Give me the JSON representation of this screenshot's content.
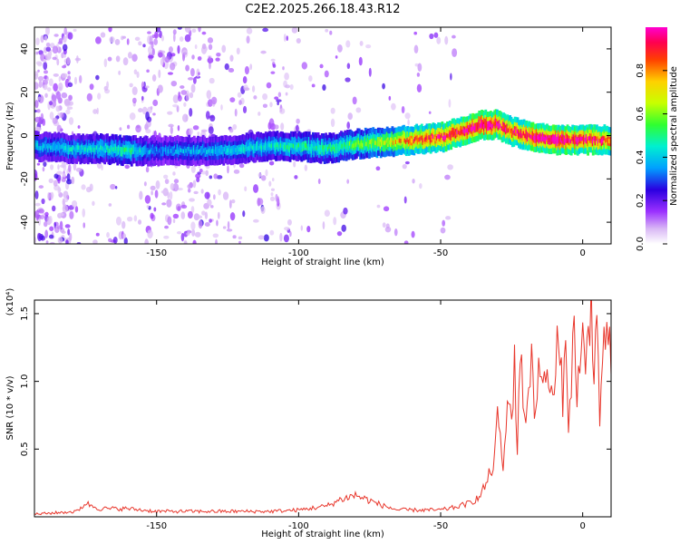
{
  "chart_data": [
    {
      "type": "heatmap",
      "name": "spectrogram",
      "title": "C2E2.2025.266.18.43.R12",
      "xlabel": "Height of straight line (km)",
      "ylabel": "Frequency (Hz)",
      "xlim": [
        -193,
        10
      ],
      "ylim": [
        -50,
        50
      ],
      "xticks": [
        -150,
        -100,
        -50,
        0
      ],
      "yticks": [
        -40,
        -20,
        0,
        20,
        40
      ],
      "xtick_labels": [
        "-150",
        "-100",
        "-50",
        "0"
      ],
      "ytick_labels": [
        "-40",
        "-20",
        "0",
        "20",
        "40"
      ],
      "colorbar": {
        "label": "Normalized spectral amplitude",
        "range": [
          0,
          1
        ],
        "ticks": [
          0.0,
          0.2,
          0.4,
          0.6,
          0.8
        ],
        "tick_labels": [
          "0.0",
          "0.2",
          "0.4",
          "0.6",
          "0.8"
        ]
      },
      "ridge": {
        "x": [
          -193,
          -180,
          -170,
          -160,
          -150,
          -140,
          -130,
          -120,
          -110,
          -100,
          -90,
          -80,
          -70,
          -60,
          -50,
          -45,
          -40,
          -35,
          -30,
          -25,
          -20,
          -15,
          -10,
          -5,
          0,
          5,
          10
        ],
        "freq": [
          -5,
          -6,
          -6,
          -7,
          -7,
          -7,
          -7,
          -6,
          -5,
          -5,
          -6,
          -4,
          -3,
          -2,
          -1,
          1,
          3,
          5,
          5,
          2,
          0,
          -1,
          -2,
          -2,
          -2,
          -2,
          -2
        ],
        "amp": [
          0.35,
          0.38,
          0.4,
          0.45,
          0.3,
          0.35,
          0.35,
          0.38,
          0.4,
          0.45,
          0.45,
          0.5,
          0.6,
          0.75,
          0.85,
          0.9,
          0.95,
          0.95,
          0.9,
          0.85,
          0.9,
          0.95,
          0.95,
          0.9,
          0.9,
          0.85,
          0.8
        ]
      }
    },
    {
      "type": "line",
      "name": "snr",
      "xlabel": "Height of straight line (km)",
      "ylabel": "SNR (10 * v/v)",
      "yscale_label": "(x10⁴)",
      "xlim": [
        -193,
        10
      ],
      "ylim": [
        0,
        1.6
      ],
      "xticks": [
        -150,
        -100,
        -50,
        0
      ],
      "yticks": [
        0.5,
        1.0,
        1.5
      ],
      "xtick_labels": [
        "-150",
        "-100",
        "-50",
        "0"
      ],
      "ytick_labels": [
        "0.5",
        "1.0",
        "1.5"
      ],
      "line_color": "#e8362b",
      "series": [
        {
          "name": "SNR",
          "x": [
            -193,
            -185,
            -178,
            -175,
            -170,
            -160,
            -150,
            -140,
            -130,
            -120,
            -110,
            -100,
            -90,
            -85,
            -80,
            -75,
            -70,
            -65,
            -60,
            -55,
            -50,
            -45,
            -40,
            -36,
            -34,
            -32,
            -31,
            -30,
            -29,
            -28,
            -27,
            -26,
            -25,
            -24,
            -23,
            -22,
            -21,
            -20,
            -19,
            -18,
            -17,
            -16,
            -15,
            -14,
            -13,
            -12,
            -11,
            -10,
            -9,
            -8,
            -7,
            -6,
            -5,
            -4,
            -3,
            -2,
            -1,
            0,
            1,
            2,
            3,
            4,
            5,
            6,
            7,
            8,
            9,
            10
          ],
          "values": [
            0.02,
            0.03,
            0.04,
            0.1,
            0.06,
            0.06,
            0.04,
            0.04,
            0.04,
            0.04,
            0.04,
            0.05,
            0.08,
            0.13,
            0.16,
            0.12,
            0.08,
            0.05,
            0.05,
            0.05,
            0.05,
            0.07,
            0.1,
            0.15,
            0.25,
            0.35,
            0.45,
            0.7,
            0.6,
            0.35,
            0.6,
            1.0,
            0.7,
            1.1,
            0.5,
            1.3,
            0.9,
            0.6,
            1.05,
            1.2,
            0.8,
            0.95,
            1.25,
            0.85,
            1.1,
            0.9,
            1.05,
            0.8,
            1.3,
            1.1,
            0.9,
            1.2,
            0.75,
            1.05,
            1.35,
            0.95,
            1.1,
            1.3,
            1.0,
            1.45,
            1.6,
            1.1,
            1.5,
            0.65,
            1.3,
            1.1,
            1.35,
            1.05
          ]
        }
      ]
    }
  ]
}
